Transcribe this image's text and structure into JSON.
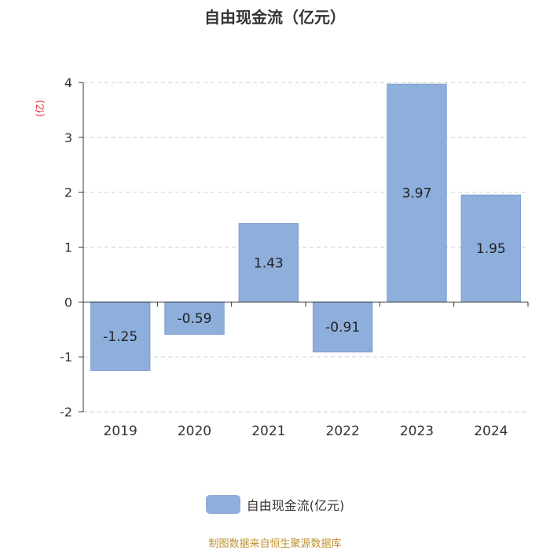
{
  "chart_data": {
    "type": "bar",
    "title": "自由现金流（亿元）",
    "ylabel": "(亿)",
    "categories": [
      "2019",
      "2020",
      "2021",
      "2022",
      "2023",
      "2024"
    ],
    "series": [
      {
        "name": "自由现金流(亿元)",
        "values": [
          -1.25,
          -0.59,
          1.43,
          -0.91,
          3.97,
          1.95
        ]
      }
    ],
    "data_labels": [
      "-1.25",
      "-0.59",
      "1.43",
      "-0.91",
      "3.97",
      "1.95"
    ],
    "ylim": [
      -2,
      4
    ],
    "yticks": [
      -2,
      -1,
      0,
      1,
      2,
      3,
      4
    ],
    "ytick_labels": [
      "-2",
      "-1",
      "0",
      "1",
      "2",
      "3",
      "4"
    ],
    "grid": true,
    "legend": "bottom-center",
    "colors": {
      "bar": "#8eaedb",
      "ylabel": "#e8222a",
      "source": "#c0912f"
    }
  },
  "footer": {
    "source": "制图数据来自恒生聚源数据库"
  }
}
